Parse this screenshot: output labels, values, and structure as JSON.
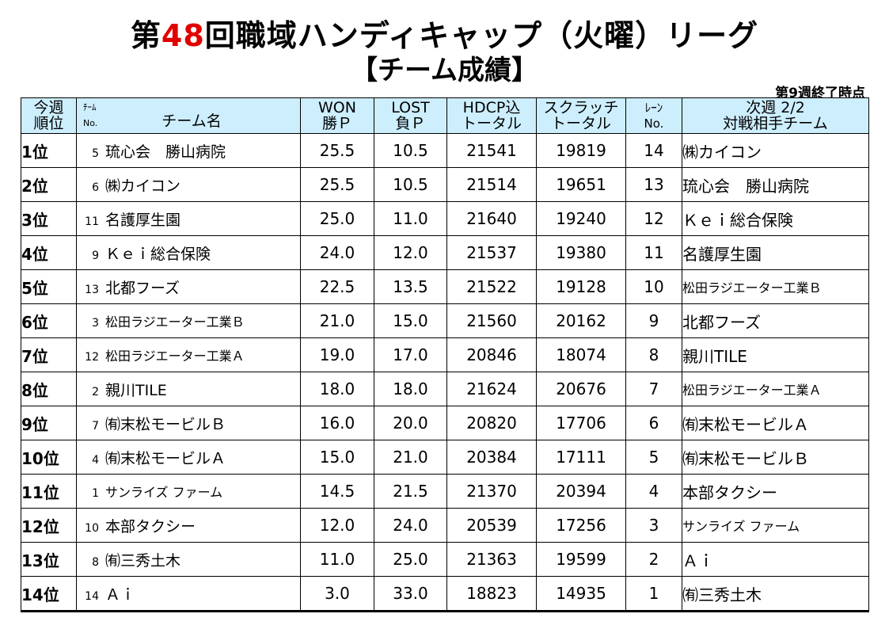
{
  "title": {
    "prefix": "第",
    "number": "48",
    "suffix": "回職域ハンディキャップ（火曜）リーグ",
    "subtitle": "【チーム成績】"
  },
  "status_note": "第9週終了時点",
  "accent_color": "#e00000",
  "header_color": "#cdeefd",
  "headers": {
    "rank_line1": "今週",
    "rank_line2": "順位",
    "team_no_small1": "ﾁｰﾑ",
    "team_no_small2": "No.",
    "team_name": "チーム名",
    "won_line1": "WON",
    "won_line2": "勝Ｐ",
    "lost_line1": "LOST",
    "lost_line2": "負Ｐ",
    "hdcp_line1": "HDCP込",
    "hdcp_line2": "トータル",
    "scratch_line1": "スクラッチ",
    "scratch_line2": "トータル",
    "lane_line1": "ﾚｰﾝ",
    "lane_line2": "No.",
    "next_line1": "次週 2/2",
    "next_line2": "対戦相手チーム"
  },
  "rows": [
    {
      "rank": "1位",
      "no": "5",
      "team": "琉心会　勝山病院",
      "won": "25.5",
      "lost": "10.5",
      "hdcp": "21541",
      "scratch": "19819",
      "lane": "14",
      "opponent": "㈱カイコン"
    },
    {
      "rank": "2位",
      "no": "6",
      "team": "㈱カイコン",
      "won": "25.5",
      "lost": "10.5",
      "hdcp": "21514",
      "scratch": "19651",
      "lane": "13",
      "opponent": "琉心会　勝山病院"
    },
    {
      "rank": "3位",
      "no": "11",
      "team": "名護厚生園",
      "won": "25.0",
      "lost": "11.0",
      "hdcp": "21640",
      "scratch": "19240",
      "lane": "12",
      "opponent": "Ｋｅｉ総合保険"
    },
    {
      "rank": "4位",
      "no": "9",
      "team": "Ｋｅｉ総合保険",
      "won": "24.0",
      "lost": "12.0",
      "hdcp": "21537",
      "scratch": "19380",
      "lane": "11",
      "opponent": "名護厚生園"
    },
    {
      "rank": "5位",
      "no": "13",
      "team": "北都フーズ",
      "won": "22.5",
      "lost": "13.5",
      "hdcp": "21522",
      "scratch": "19128",
      "lane": "10",
      "opponent": "松田ラジエーター工業Ｂ"
    },
    {
      "rank": "6位",
      "no": "3",
      "team": "松田ラジエーター工業Ｂ",
      "won": "21.0",
      "lost": "15.0",
      "hdcp": "21560",
      "scratch": "20162",
      "lane": "9",
      "opponent": "北都フーズ"
    },
    {
      "rank": "7位",
      "no": "12",
      "team": "松田ラジエーター工業Ａ",
      "won": "19.0",
      "lost": "17.0",
      "hdcp": "20846",
      "scratch": "18074",
      "lane": "8",
      "opponent": "親川TILE"
    },
    {
      "rank": "8位",
      "no": "2",
      "team": "親川TILE",
      "won": "18.0",
      "lost": "18.0",
      "hdcp": "21624",
      "scratch": "20676",
      "lane": "7",
      "opponent": "松田ラジエーター工業Ａ"
    },
    {
      "rank": "9位",
      "no": "7",
      "team": "㈲末松モービルＢ",
      "won": "16.0",
      "lost": "20.0",
      "hdcp": "20820",
      "scratch": "17706",
      "lane": "6",
      "opponent": "㈲末松モービルＡ"
    },
    {
      "rank": "10位",
      "no": "4",
      "team": "㈲末松モービルＡ",
      "won": "15.0",
      "lost": "21.0",
      "hdcp": "20384",
      "scratch": "17111",
      "lane": "5",
      "opponent": "㈲末松モービルＢ"
    },
    {
      "rank": "11位",
      "no": "1",
      "team": "サンライズ ファーム",
      "won": "14.5",
      "lost": "21.5",
      "hdcp": "21370",
      "scratch": "20394",
      "lane": "4",
      "opponent": "本部タクシー"
    },
    {
      "rank": "12位",
      "no": "10",
      "team": "本部タクシー",
      "won": "12.0",
      "lost": "24.0",
      "hdcp": "20539",
      "scratch": "17256",
      "lane": "3",
      "opponent": "サンライズ ファーム"
    },
    {
      "rank": "13位",
      "no": "8",
      "team": "㈲三秀土木",
      "won": "11.0",
      "lost": "25.0",
      "hdcp": "21363",
      "scratch": "19599",
      "lane": "2",
      "opponent": "Ａｉ"
    },
    {
      "rank": "14位",
      "no": "14",
      "team": "Ａｉ",
      "won": "3.0",
      "lost": "33.0",
      "hdcp": "18823",
      "scratch": "14935",
      "lane": "1",
      "opponent": "㈲三秀土木"
    }
  ]
}
